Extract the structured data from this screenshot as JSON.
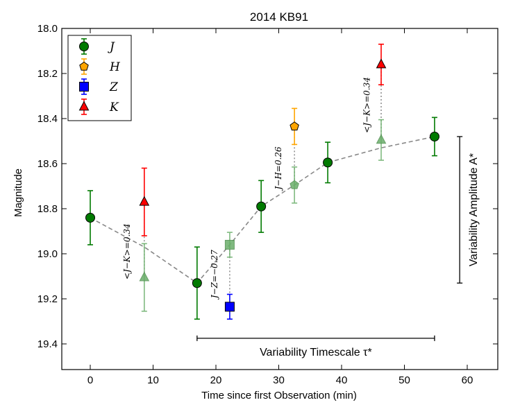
{
  "chart_data": {
    "type": "scatter",
    "title": "2014 KB91",
    "xlabel": "Time since first Observation (min)",
    "ylabel": "Magnitude",
    "xlim": [
      -5,
      65
    ],
    "ylim": [
      19.5,
      18.0
    ],
    "y_inverted": true,
    "grid": false,
    "legend_position": "top-left",
    "xticks": [
      "0",
      "10",
      "20",
      "30",
      "40",
      "50",
      "60"
    ],
    "yticks": [
      "18.0",
      "18.2",
      "18.4",
      "18.6",
      "18.8",
      "19.0",
      "19.2",
      "19.4"
    ],
    "series": [
      {
        "name": "J",
        "color": "#007a00",
        "marker": "circle",
        "points": [
          {
            "x": 0,
            "y": 18.84,
            "err": 0.12
          },
          {
            "x": 17.0,
            "y": 19.13,
            "err": 0.16
          },
          {
            "x": 27.2,
            "y": 18.79,
            "err": 0.115
          },
          {
            "x": 37.8,
            "y": 18.595,
            "err": 0.09
          },
          {
            "x": 54.8,
            "y": 18.48,
            "err": 0.085
          }
        ]
      },
      {
        "name": "H",
        "color": "#ffa500",
        "marker": "pentagon",
        "points": [
          {
            "x": 32.5,
            "y": 18.435,
            "err": 0.08
          }
        ]
      },
      {
        "name": "Z",
        "color": "#0000ff",
        "marker": "square",
        "points": [
          {
            "x": 22.2,
            "y": 19.235,
            "err": 0.055
          }
        ]
      },
      {
        "name": "K",
        "color": "#ff0000",
        "marker": "triangle",
        "points": [
          {
            "x": 8.6,
            "y": 18.77,
            "err": 0.15
          },
          {
            "x": 46.3,
            "y": 18.16,
            "err": 0.09
          }
        ]
      }
    ],
    "shifted_points": [
      {
        "x": 8.6,
        "y": 19.105,
        "err": 0.15,
        "marker": "triangle",
        "from_y": 18.77
      },
      {
        "x": 22.2,
        "y": 18.96,
        "err": 0.055,
        "marker": "square",
        "from_y": 19.235
      },
      {
        "x": 32.5,
        "y": 18.695,
        "err": 0.08,
        "marker": "pentagon",
        "from_y": 18.435
      },
      {
        "x": 46.3,
        "y": 18.495,
        "err": 0.09,
        "marker": "triangle",
        "from_y": 18.16
      }
    ],
    "shifted_color": "#6aaf6a",
    "trend_line": [
      {
        "x": 0,
        "y": 18.84
      },
      {
        "x": 8.6,
        "y": 18.97
      },
      {
        "x": 17.0,
        "y": 19.13
      },
      {
        "x": 22.2,
        "y": 18.96
      },
      {
        "x": 27.2,
        "y": 18.79
      },
      {
        "x": 32.5,
        "y": 18.695
      },
      {
        "x": 37.8,
        "y": 18.595
      },
      {
        "x": 46.3,
        "y": 18.53
      },
      {
        "x": 54.8,
        "y": 18.48
      }
    ],
    "annotations": [
      {
        "text": "<J−K>=0.34",
        "x": 6.3,
        "y": 18.99
      },
      {
        "text": "J−Z=−0.27",
        "x": 20.2,
        "y": 19.09
      },
      {
        "text": "J−H=0.26",
        "x": 30.4,
        "y": 18.62
      },
      {
        "text": "<J−K>=0.34",
        "x": 44.5,
        "y": 18.34
      }
    ],
    "timescale": {
      "label": "Variability Timescale τ*",
      "x_start": 17.0,
      "x_end": 54.8,
      "y": 19.375
    },
    "amplitude": {
      "label": "Variability Amplitude A*",
      "x": 58.8,
      "y_start": 18.48,
      "y_end": 19.13
    }
  }
}
